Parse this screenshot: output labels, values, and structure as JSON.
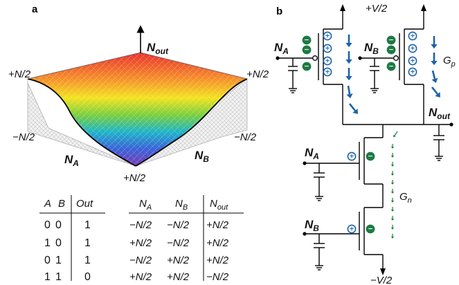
{
  "panel_a": {
    "letter": "a",
    "surface": {
      "z_axis_label": "N",
      "z_axis_sub": "out",
      "left_top": "+N/2",
      "right_top": "+N/2",
      "left_mid": "−N/2",
      "right_mid": "−N/2",
      "bottom": "+N/2",
      "axis_a_main": "N",
      "axis_a_sub": "A",
      "axis_b_main": "N",
      "axis_b_sub": "B",
      "colors": [
        "#e8322e",
        "#f58a2a",
        "#f4e21e",
        "#79cf3d",
        "#1eb4c8",
        "#3a62d8",
        "#7a3ab5"
      ]
    },
    "truth_table": {
      "headers": [
        "A",
        "B",
        "Out"
      ],
      "rows": [
        [
          "0",
          "0",
          "1"
        ],
        [
          "1",
          "0",
          "1"
        ],
        [
          "0",
          "1",
          "1"
        ],
        [
          "1",
          "1",
          "0"
        ]
      ]
    },
    "value_table": {
      "headers": [
        {
          "main": "N",
          "sub": "A"
        },
        {
          "main": "N",
          "sub": "B"
        },
        {
          "main": "N",
          "sub": "out"
        }
      ],
      "rows": [
        [
          "−N/2",
          "−N/2",
          "+N/2"
        ],
        [
          "+N/2",
          "−N/2",
          "+N/2"
        ],
        [
          "−N/2",
          "+N/2",
          "+N/2"
        ],
        [
          "+N/2",
          "+N/2",
          "−N/2"
        ]
      ]
    }
  },
  "panel_b": {
    "letter": "b",
    "supply_top": "+V/2",
    "supply_bottom": "−V/2",
    "input_a_top": {
      "main": "N",
      "sub": "A"
    },
    "input_b_top": {
      "main": "N",
      "sub": "B"
    },
    "input_a_bottom": {
      "main": "N",
      "sub": "A"
    },
    "input_b_bottom": {
      "main": "N",
      "sub": "B"
    },
    "output": {
      "main": "N",
      "sub": "out"
    },
    "gp": {
      "main": "G",
      "sub": "p"
    },
    "gn": {
      "main": "G",
      "sub": "n"
    },
    "charge_positive_color": "#1c63a8",
    "charge_negative_color": "#1e7a43",
    "arrow_blue_color": "#1c63a8",
    "arrow_green_color": "#1e7a43",
    "plus": "+",
    "minus": "−"
  }
}
